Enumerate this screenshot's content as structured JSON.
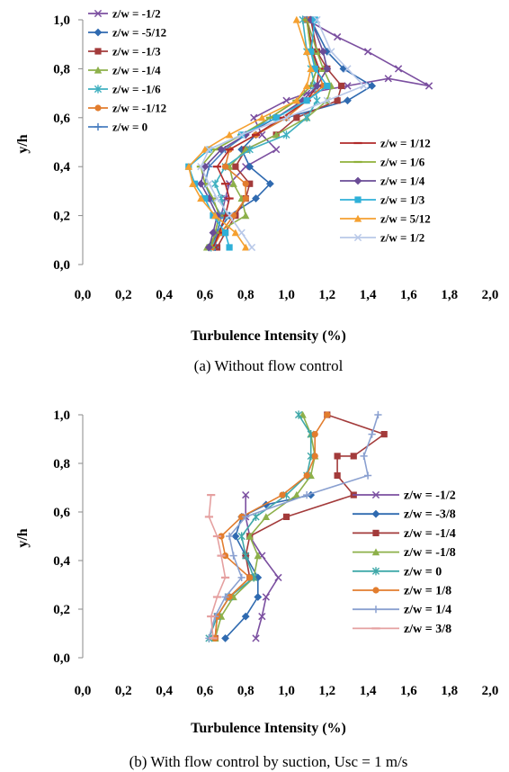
{
  "chart_data": [
    {
      "type": "line",
      "caption": "(a) Without flow control",
      "xlabel": "Turbulence Intensity (%)",
      "ylabel": "y/h",
      "xlim": [
        0.0,
        2.0
      ],
      "ylim": [
        0.0,
        1.0
      ],
      "xticks": [
        "0,0",
        "0,2",
        "0,4",
        "0,6",
        "0,8",
        "1,0",
        "1,2",
        "1,4",
        "1,6",
        "1,8",
        "2,0"
      ],
      "yticks": [
        "0,0",
        "0,2",
        "0,4",
        "0,6",
        "0,8",
        "1,0"
      ],
      "grid": false,
      "series": [
        {
          "name": "z/w = -1/2",
          "color": "#7b4fa0",
          "marker": "x",
          "x": [
            0.63,
            0.66,
            0.68,
            0.7,
            0.72,
            0.8,
            0.95,
            0.88,
            0.84,
            1.0,
            1.1,
            1.3,
            1.5,
            1.7,
            1.55,
            1.4,
            1.25,
            1.1
          ],
          "y": [
            0.07,
            0.13,
            0.2,
            0.27,
            0.33,
            0.4,
            0.47,
            0.53,
            0.6,
            0.67,
            0.7,
            0.73,
            0.76,
            0.73,
            0.8,
            0.87,
            0.93,
            1.0
          ]
        },
        {
          "name": "z/w = -5/12",
          "color": "#2f6ab0",
          "marker": "diamond",
          "x": [
            0.62,
            0.66,
            0.72,
            0.85,
            0.92,
            0.82,
            0.78,
            0.85,
            1.0,
            1.3,
            1.42,
            1.28,
            1.2,
            1.12
          ],
          "y": [
            0.07,
            0.13,
            0.2,
            0.27,
            0.33,
            0.4,
            0.47,
            0.53,
            0.6,
            0.67,
            0.73,
            0.8,
            0.87,
            1.0
          ]
        },
        {
          "name": "z/w = -1/3",
          "color": "#a33b3b",
          "marker": "square",
          "x": [
            0.66,
            0.7,
            0.75,
            0.8,
            0.82,
            0.75,
            0.8,
            0.95,
            1.05,
            1.25,
            1.27,
            1.2,
            1.15,
            1.12
          ],
          "y": [
            0.07,
            0.13,
            0.2,
            0.27,
            0.33,
            0.4,
            0.47,
            0.53,
            0.6,
            0.67,
            0.73,
            0.8,
            0.87,
            1.0
          ]
        },
        {
          "name": "z/w = -1/4",
          "color": "#8db04a",
          "marker": "triangle",
          "x": [
            0.61,
            0.66,
            0.8,
            0.78,
            0.74,
            0.72,
            0.8,
            0.95,
            1.1,
            1.2,
            1.22,
            1.18,
            1.15,
            1.1
          ],
          "y": [
            0.07,
            0.13,
            0.2,
            0.27,
            0.33,
            0.4,
            0.47,
            0.53,
            0.6,
            0.67,
            0.73,
            0.8,
            0.87,
            1.0
          ]
        },
        {
          "name": "z/w = -1/6",
          "color": "#3fb0c0",
          "marker": "star",
          "x": [
            0.63,
            0.67,
            0.7,
            0.68,
            0.65,
            0.7,
            0.82,
            1.0,
            1.1,
            1.15,
            1.14,
            1.12,
            1.1,
            1.08
          ],
          "y": [
            0.07,
            0.13,
            0.2,
            0.27,
            0.33,
            0.4,
            0.47,
            0.53,
            0.6,
            0.67,
            0.73,
            0.8,
            0.87,
            1.0
          ]
        },
        {
          "name": "z/w = -1/12",
          "color": "#e27d2e",
          "marker": "circle",
          "x": [
            0.64,
            0.68,
            0.74,
            0.8,
            0.8,
            0.7,
            0.72,
            0.85,
            1.0,
            1.1,
            1.18,
            1.15,
            1.12,
            1.1
          ],
          "y": [
            0.07,
            0.13,
            0.2,
            0.27,
            0.33,
            0.4,
            0.47,
            0.53,
            0.6,
            0.67,
            0.73,
            0.8,
            0.87,
            1.0
          ]
        },
        {
          "name": "z/w = 0",
          "color": "#4a7fc0",
          "marker": "plus",
          "x": [
            0.65,
            0.66,
            0.68,
            0.63,
            0.6,
            0.62,
            0.7,
            0.8,
            0.92,
            1.05,
            1.12,
            1.15,
            1.13,
            1.1
          ],
          "y": [
            0.07,
            0.13,
            0.2,
            0.27,
            0.33,
            0.4,
            0.47,
            0.53,
            0.6,
            0.67,
            0.73,
            0.8,
            0.87,
            1.0
          ]
        },
        {
          "name": "z/w = 1/12",
          "color": "#b02a2a",
          "marker": "dash",
          "x": [
            0.64,
            0.67,
            0.7,
            0.72,
            0.7,
            0.66,
            0.72,
            0.85,
            0.98,
            1.1,
            1.15,
            1.16,
            1.13,
            1.1
          ],
          "y": [
            0.07,
            0.13,
            0.2,
            0.27,
            0.33,
            0.4,
            0.47,
            0.53,
            0.6,
            0.67,
            0.73,
            0.8,
            0.87,
            1.0
          ]
        },
        {
          "name": "z/w = 1/6",
          "color": "#8fb03a",
          "marker": "dash",
          "x": [
            0.63,
            0.65,
            0.67,
            0.64,
            0.6,
            0.58,
            0.65,
            0.78,
            0.92,
            1.05,
            1.12,
            1.15,
            1.12,
            1.1
          ],
          "y": [
            0.07,
            0.13,
            0.2,
            0.27,
            0.33,
            0.4,
            0.47,
            0.53,
            0.6,
            0.67,
            0.73,
            0.8,
            0.87,
            1.0
          ]
        },
        {
          "name": "z/w = 1/4",
          "color": "#6a4c96",
          "marker": "diamond",
          "x": [
            0.62,
            0.64,
            0.66,
            0.62,
            0.58,
            0.6,
            0.68,
            0.8,
            0.95,
            1.08,
            1.15,
            1.2,
            1.18,
            1.12
          ],
          "y": [
            0.07,
            0.13,
            0.2,
            0.27,
            0.33,
            0.4,
            0.47,
            0.53,
            0.6,
            0.67,
            0.73,
            0.8,
            0.87,
            1.0
          ]
        },
        {
          "name": "z/w = 1/3",
          "color": "#2fb0d8",
          "marker": "square",
          "x": [
            0.72,
            0.7,
            0.64,
            0.6,
            0.55,
            0.52,
            0.62,
            0.78,
            0.95,
            1.1,
            1.2,
            1.14,
            1.12,
            1.14
          ],
          "y": [
            0.07,
            0.13,
            0.2,
            0.27,
            0.33,
            0.4,
            0.47,
            0.53,
            0.6,
            0.67,
            0.73,
            0.8,
            0.87,
            1.0
          ]
        },
        {
          "name": "z/w = 5/12",
          "color": "#f5a030",
          "marker": "triangle",
          "x": [
            0.8,
            0.75,
            0.65,
            0.58,
            0.54,
            0.52,
            0.6,
            0.72,
            0.88,
            1.05,
            1.1,
            1.12,
            1.1,
            1.05
          ],
          "y": [
            0.07,
            0.13,
            0.2,
            0.27,
            0.33,
            0.4,
            0.47,
            0.53,
            0.6,
            0.67,
            0.73,
            0.8,
            0.87,
            1.0
          ]
        },
        {
          "name": "z/w = 1/2",
          "color": "#b8c8e8",
          "marker": "x",
          "x": [
            0.83,
            0.78,
            0.72,
            0.66,
            0.62,
            0.58,
            0.62,
            0.78,
            1.0,
            1.2,
            1.38,
            1.3,
            1.22,
            1.15
          ],
          "y": [
            0.07,
            0.13,
            0.2,
            0.27,
            0.33,
            0.4,
            0.47,
            0.53,
            0.6,
            0.67,
            0.73,
            0.8,
            0.87,
            1.0
          ]
        }
      ]
    },
    {
      "type": "line",
      "caption": "(b) With flow control by suction, Usc = 1 m/s",
      "xlabel": "Turbulence Intensity (%)",
      "ylabel": "y/h",
      "xlim": [
        0.0,
        2.0
      ],
      "ylim": [
        0.0,
        1.0
      ],
      "xticks": [
        "0,0",
        "0,2",
        "0,4",
        "0,6",
        "0,8",
        "1,0",
        "1,2",
        "1,4",
        "1,6",
        "1,8",
        "2,0"
      ],
      "yticks": [
        "0,0",
        "0,2",
        "0,4",
        "0,6",
        "0,8",
        "1,0"
      ],
      "grid": false,
      "series": [
        {
          "name": "z/w = -1/2",
          "color": "#7b4fa0",
          "marker": "x",
          "x": [
            0.85,
            0.88,
            0.9,
            0.96,
            0.88,
            0.82,
            0.8,
            0.8
          ],
          "y": [
            0.08,
            0.17,
            0.25,
            0.33,
            0.42,
            0.5,
            0.58,
            0.67
          ]
        },
        {
          "name": "z/w = -3/8",
          "color": "#2f6ab0",
          "marker": "diamond",
          "x": [
            0.7,
            0.8,
            0.86,
            0.86,
            0.8,
            0.75,
            0.78,
            0.9,
            1.12
          ],
          "y": [
            0.08,
            0.17,
            0.25,
            0.33,
            0.42,
            0.5,
            0.58,
            0.63,
            0.67
          ]
        },
        {
          "name": "z/w = -1/4",
          "color": "#a33b3b",
          "marker": "square",
          "x": [
            0.65,
            0.66,
            0.72,
            0.82,
            0.8,
            0.82,
            1.0,
            1.33,
            1.25,
            1.25,
            1.33,
            1.48,
            1.2
          ],
          "y": [
            0.08,
            0.17,
            0.25,
            0.33,
            0.42,
            0.5,
            0.58,
            0.67,
            0.75,
            0.83,
            0.83,
            0.92,
            1.0
          ]
        },
        {
          "name": "z/w = -1/8",
          "color": "#8db04a",
          "marker": "triangle",
          "x": [
            0.65,
            0.68,
            0.74,
            0.84,
            0.86,
            0.82,
            0.9,
            1.05,
            1.12,
            1.14,
            1.12,
            1.08
          ],
          "y": [
            0.08,
            0.17,
            0.25,
            0.33,
            0.42,
            0.5,
            0.58,
            0.67,
            0.75,
            0.83,
            0.92,
            1.0
          ]
        },
        {
          "name": "z/w = 0",
          "color": "#3fa8a8",
          "marker": "star",
          "x": [
            0.62,
            0.66,
            0.72,
            0.84,
            0.8,
            0.78,
            0.85,
            1.0,
            1.1,
            1.12,
            1.12,
            1.06
          ],
          "y": [
            0.08,
            0.17,
            0.25,
            0.33,
            0.42,
            0.5,
            0.58,
            0.67,
            0.75,
            0.83,
            0.92,
            1.0
          ]
        },
        {
          "name": "z/w = 1/8",
          "color": "#e27d2e",
          "marker": "circle",
          "x": [
            0.65,
            0.66,
            0.72,
            0.82,
            0.7,
            0.68,
            0.78,
            0.98,
            1.1,
            1.14,
            1.14,
            1.2
          ],
          "y": [
            0.08,
            0.17,
            0.25,
            0.33,
            0.42,
            0.5,
            0.58,
            0.67,
            0.75,
            0.83,
            0.92,
            1.0
          ]
        },
        {
          "name": "z/w = 1/4",
          "color": "#8aa0d0",
          "marker": "plus",
          "x": [
            0.62,
            0.65,
            0.7,
            0.78,
            0.74,
            0.72,
            0.8,
            1.1,
            1.4,
            1.38,
            1.42,
            1.45
          ],
          "y": [
            0.08,
            0.17,
            0.25,
            0.33,
            0.42,
            0.5,
            0.58,
            0.67,
            0.75,
            0.83,
            0.92,
            1.0
          ]
        },
        {
          "name": "z/w = 3/8",
          "color": "#e5a0a0",
          "marker": "dash",
          "x": [
            0.64,
            0.63,
            0.66,
            0.7,
            0.68,
            0.66,
            0.62,
            0.63
          ],
          "y": [
            0.08,
            0.17,
            0.25,
            0.33,
            0.42,
            0.5,
            0.58,
            0.67
          ]
        }
      ]
    }
  ]
}
